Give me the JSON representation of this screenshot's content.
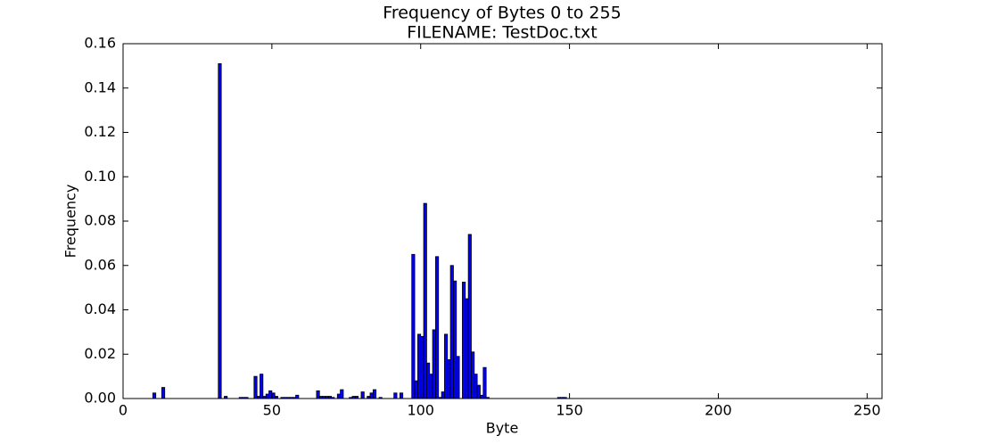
{
  "chart_data": {
    "type": "bar",
    "title": "Frequency of Bytes 0 to 255",
    "subtitle": "FILENAME: TestDoc.txt",
    "x_label": "Byte",
    "y_label": "Frequency",
    "color": "#0000ff",
    "edge_color": "#000000",
    "x": [
      10,
      13,
      32,
      34,
      39,
      40,
      41,
      44,
      45,
      46,
      47,
      48,
      49,
      50,
      51,
      53,
      54,
      55,
      56,
      57,
      58,
      65,
      66,
      67,
      68,
      69,
      70,
      72,
      73,
      76,
      77,
      78,
      80,
      82,
      83,
      84,
      86,
      91,
      93,
      97,
      98,
      99,
      100,
      101,
      102,
      103,
      104,
      105,
      106,
      107,
      108,
      109,
      110,
      111,
      112,
      114,
      115,
      116,
      117,
      118,
      119,
      120,
      121,
      122,
      146,
      147,
      148
    ],
    "values": [
      0.0025,
      0.005,
      0.151,
      0.001,
      0.0005,
      0.0005,
      0.0005,
      0.01,
      0.001,
      0.011,
      0.001,
      0.002,
      0.0035,
      0.0025,
      0.001,
      0.0005,
      0.0005,
      0.0005,
      0.0005,
      0.0005,
      0.0015,
      0.0035,
      0.001,
      0.001,
      0.001,
      0.001,
      0.0005,
      0.002,
      0.004,
      0.0005,
      0.001,
      0.001,
      0.003,
      0.001,
      0.0025,
      0.004,
      0.0005,
      0.0025,
      0.0025,
      0.065,
      0.008,
      0.029,
      0.028,
      0.088,
      0.016,
      0.011,
      0.031,
      0.064,
      0.0005,
      0.003,
      0.029,
      0.0175,
      0.06,
      0.053,
      0.019,
      0.0525,
      0.045,
      0.074,
      0.021,
      0.011,
      0.006,
      0.0015,
      0.014,
      0.0005,
      0.0005,
      0.0005,
      0.0005
    ],
    "bar_width": 1,
    "xlim": [
      0,
      255
    ],
    "ylim": [
      0,
      0.16
    ],
    "xticks": [
      0,
      50,
      100,
      150,
      200,
      250
    ],
    "yticks": [
      {
        "value": 0,
        "label": "0.00"
      },
      {
        "value": 0.02,
        "label": "0.02"
      },
      {
        "value": 0.04,
        "label": "0.04"
      },
      {
        "value": 0.06,
        "label": "0.06"
      },
      {
        "value": 0.08,
        "label": "0.08"
      },
      {
        "value": 0.1,
        "label": "0.10"
      },
      {
        "value": 0.12,
        "label": "0.12"
      },
      {
        "value": 0.14,
        "label": "0.14"
      },
      {
        "value": 0.16,
        "label": "0.16"
      }
    ],
    "grid": false
  }
}
